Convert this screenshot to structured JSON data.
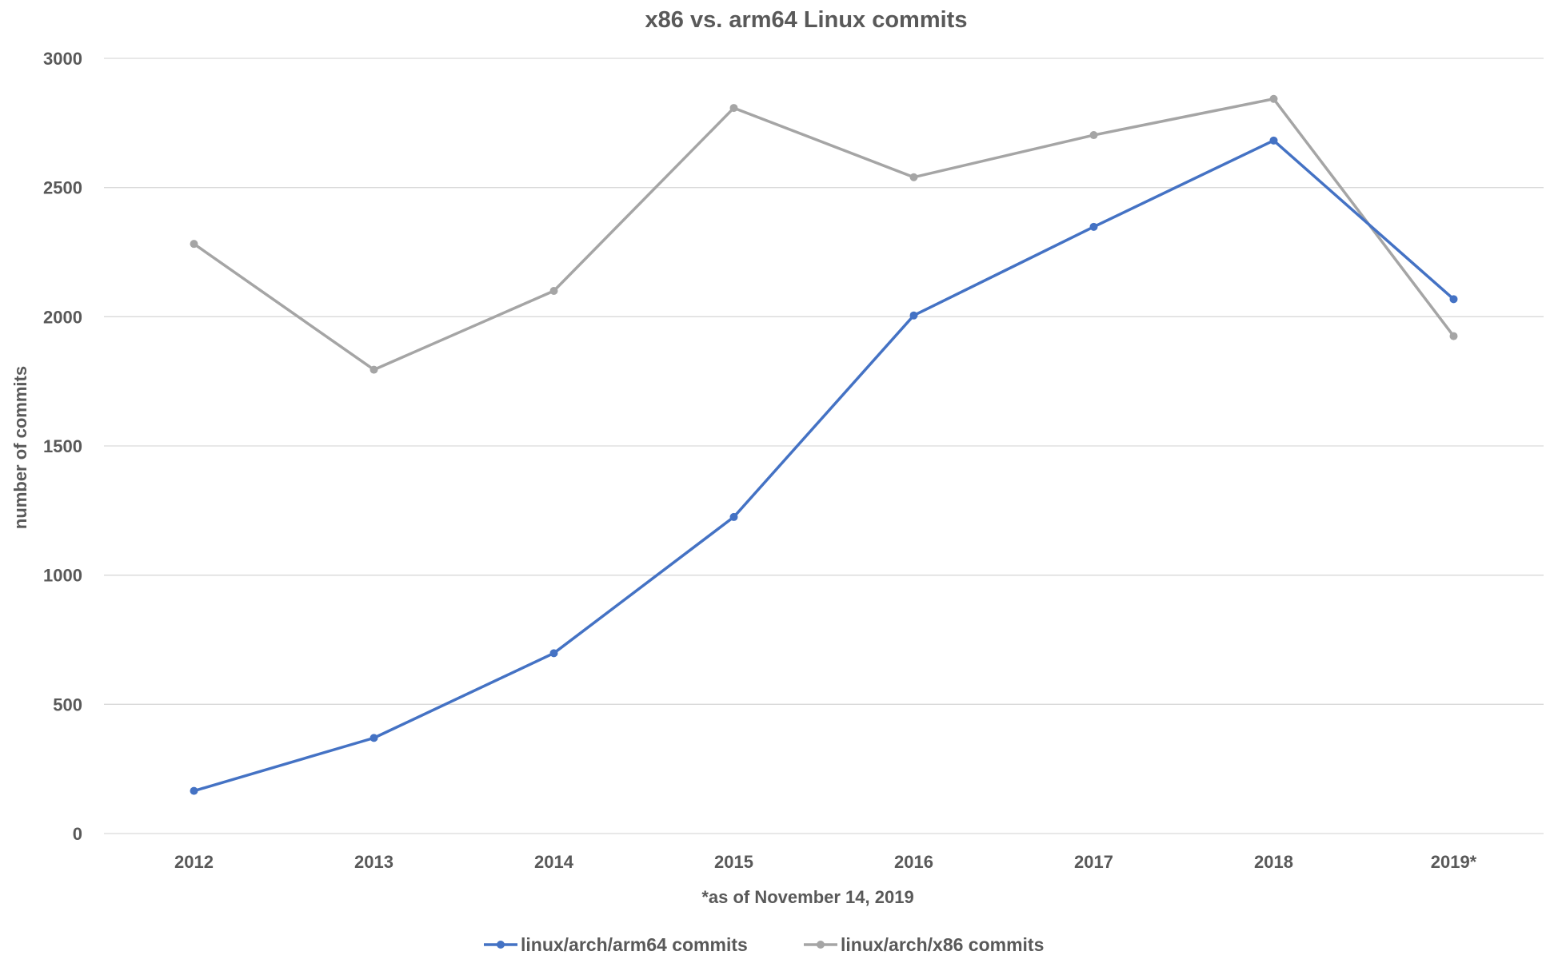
{
  "chart_data": {
    "type": "line",
    "title": "x86 vs. arm64 Linux commits",
    "xlabel": "*as of November 14, 2019",
    "ylabel": "number of commits",
    "categories": [
      "2012",
      "2013",
      "2014",
      "2015",
      "2016",
      "2017",
      "2018",
      "2019*"
    ],
    "ylim": [
      0,
      3000
    ],
    "yticks": [
      "0",
      "500",
      "1000",
      "1500",
      "2000",
      "2500",
      "3000"
    ],
    "grid": true,
    "legend_position": "bottom",
    "series": [
      {
        "name": "linux/arch/arm64 commits",
        "color": "#4472c4",
        "values": [
          165,
          370,
          698,
          1225,
          2005,
          2348,
          2682,
          2068
        ]
      },
      {
        "name": "linux/arch/x86 commits",
        "color": "#a5a5a5",
        "values": [
          2282,
          1795,
          2100,
          2808,
          2540,
          2703,
          2843,
          1925
        ]
      }
    ]
  }
}
